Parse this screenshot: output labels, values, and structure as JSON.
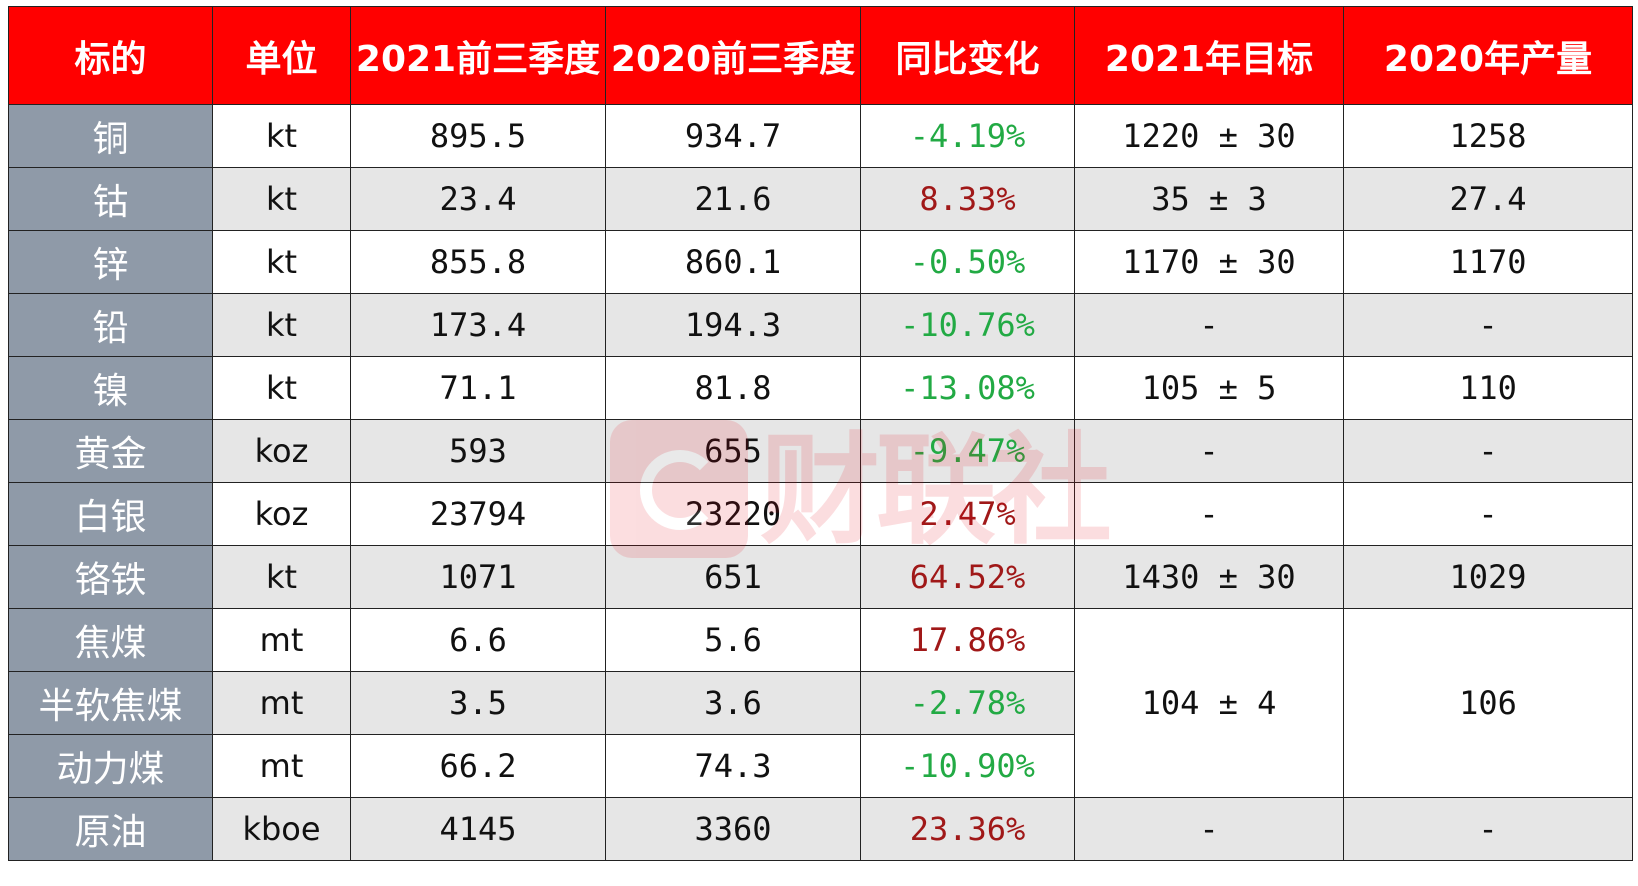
{
  "chart_data": {
    "type": "table",
    "columns": [
      "标的",
      "单位",
      "2021前三季度",
      "2020前三季度",
      "同比变化",
      "2021年目标",
      "2020年产量"
    ],
    "rows": [
      {
        "name": "铜",
        "unit": "kt",
        "q3_2021": "895.5",
        "q3_2020": "934.7",
        "yoy": "-4.19%",
        "target_2021": "1220 ± 30",
        "output_2020": "1258"
      },
      {
        "name": "钴",
        "unit": "kt",
        "q3_2021": "23.4",
        "q3_2020": "21.6",
        "yoy": "8.33%",
        "target_2021": "35 ± 3",
        "output_2020": "27.4"
      },
      {
        "name": "锌",
        "unit": "kt",
        "q3_2021": "855.8",
        "q3_2020": "860.1",
        "yoy": "-0.50%",
        "target_2021": "1170 ± 30",
        "output_2020": "1170"
      },
      {
        "name": "铅",
        "unit": "kt",
        "q3_2021": "173.4",
        "q3_2020": "194.3",
        "yoy": "-10.76%",
        "target_2021": "-",
        "output_2020": "-"
      },
      {
        "name": "镍",
        "unit": "kt",
        "q3_2021": "71.1",
        "q3_2020": "81.8",
        "yoy": "-13.08%",
        "target_2021": "105 ± 5",
        "output_2020": "110"
      },
      {
        "name": "黄金",
        "unit": "koz",
        "q3_2021": "593",
        "q3_2020": "655",
        "yoy": "-9.47%",
        "target_2021": "-",
        "output_2020": "-"
      },
      {
        "name": "白银",
        "unit": "koz",
        "q3_2021": "23794",
        "q3_2020": "23220",
        "yoy": "2.47%",
        "target_2021": "-",
        "output_2020": "-"
      },
      {
        "name": "铬铁",
        "unit": "kt",
        "q3_2021": "1071",
        "q3_2020": "651",
        "yoy": "64.52%",
        "target_2021": "1430 ± 30",
        "output_2020": "1029"
      },
      {
        "name": "焦煤",
        "unit": "mt",
        "q3_2021": "6.6",
        "q3_2020": "5.6",
        "yoy": "17.86%"
      },
      {
        "name": "半软焦煤",
        "unit": "mt",
        "q3_2021": "3.5",
        "q3_2020": "3.6",
        "yoy": "-2.78%"
      },
      {
        "name": "动力煤",
        "unit": "mt",
        "q3_2021": "66.2",
        "q3_2020": "74.3",
        "yoy": "-10.90%"
      },
      {
        "name": "原油",
        "unit": "kboe",
        "q3_2021": "4145",
        "q3_2020": "3360",
        "yoy": "23.36%",
        "target_2021": "-",
        "output_2020": "-"
      }
    ],
    "merged_coal_group": {
      "target_2021": "104 ± 4",
      "output_2020": "106"
    },
    "colors": {
      "header_bg": "#ff0000",
      "header_text": "#ffffff",
      "name_col_bg": "#8f9aa8",
      "shaded_row_bg": "#e6e6e6",
      "negative_change": "#22aa44",
      "positive_change": "#a01818"
    }
  },
  "watermark": {
    "text": "财联社",
    "icon": "cls-logo-icon"
  }
}
